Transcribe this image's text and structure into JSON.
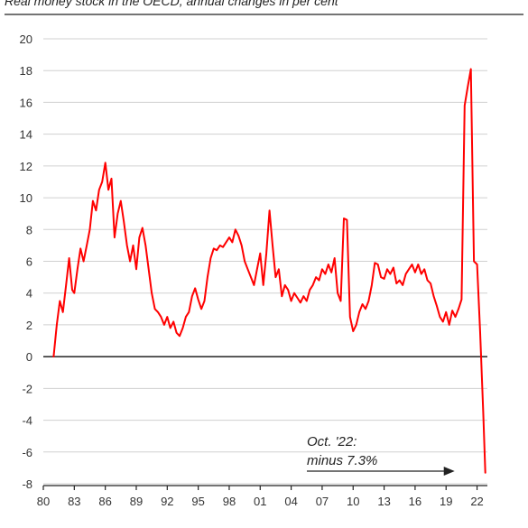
{
  "chart_data": {
    "type": "line",
    "title": "Real money stock in the OECD, annual changes in per cent",
    "xlabel": "",
    "ylabel": "",
    "xlim": [
      1980,
      2023
    ],
    "ylim": [
      -8,
      20
    ],
    "y_ticks": [
      20,
      18,
      16,
      14,
      12,
      10,
      8,
      6,
      4,
      2,
      0,
      -2,
      -4,
      -6,
      -8
    ],
    "x_ticks": [
      {
        "label": "80",
        "value": 1980
      },
      {
        "label": "83",
        "value": 1983
      },
      {
        "label": "86",
        "value": 1986
      },
      {
        "label": "89",
        "value": 1989
      },
      {
        "label": "92",
        "value": 1992
      },
      {
        "label": "95",
        "value": 1995
      },
      {
        "label": "98",
        "value": 1998
      },
      {
        "label": "01",
        "value": 2001
      },
      {
        "label": "04",
        "value": 2004
      },
      {
        "label": "07",
        "value": 2007
      },
      {
        "label": "10",
        "value": 2010
      },
      {
        "label": "13",
        "value": 2013
      },
      {
        "label": "16",
        "value": 2016
      },
      {
        "label": "19",
        "value": 2019
      },
      {
        "label": "22",
        "value": 2022
      }
    ],
    "grid": true,
    "series": [
      {
        "color": "#ff0000",
        "x": [
          1981.0,
          1981.3,
          1981.6,
          1981.9,
          1982.2,
          1982.5,
          1982.8,
          1983.0,
          1983.3,
          1983.6,
          1983.9,
          1984.2,
          1984.5,
          1984.8,
          1985.1,
          1985.4,
          1985.7,
          1986.0,
          1986.3,
          1986.6,
          1986.9,
          1987.2,
          1987.5,
          1987.8,
          1988.1,
          1988.4,
          1988.7,
          1989.0,
          1989.3,
          1989.6,
          1989.9,
          1990.2,
          1990.5,
          1990.8,
          1991.1,
          1991.4,
          1991.7,
          1992.0,
          1992.3,
          1992.6,
          1992.9,
          1993.2,
          1993.5,
          1993.8,
          1994.1,
          1994.4,
          1994.7,
          1995.0,
          1995.3,
          1995.6,
          1995.9,
          1996.2,
          1996.5,
          1996.8,
          1997.1,
          1997.4,
          1997.7,
          1998.0,
          1998.3,
          1998.6,
          1998.9,
          1999.2,
          1999.5,
          1999.8,
          2000.1,
          2000.4,
          2000.7,
          2001.0,
          2001.3,
          2001.6,
          2001.9,
          2002.2,
          2002.5,
          2002.8,
          2003.1,
          2003.4,
          2003.7,
          2004.0,
          2004.3,
          2004.6,
          2004.9,
          2005.2,
          2005.5,
          2005.8,
          2006.1,
          2006.4,
          2006.7,
          2007.0,
          2007.3,
          2007.6,
          2007.9,
          2008.2,
          2008.5,
          2008.8,
          2009.1,
          2009.4,
          2009.7,
          2010.0,
          2010.3,
          2010.6,
          2010.9,
          2011.2,
          2011.5,
          2011.8,
          2012.1,
          2012.4,
          2012.7,
          2013.0,
          2013.3,
          2013.6,
          2013.9,
          2014.2,
          2014.5,
          2014.8,
          2015.1,
          2015.4,
          2015.7,
          2016.0,
          2016.3,
          2016.6,
          2016.9,
          2017.2,
          2017.5,
          2017.8,
          2018.1,
          2018.4,
          2018.7,
          2019.0,
          2019.3,
          2019.6,
          2019.9,
          2020.2,
          2020.5,
          2020.8,
          2021.1,
          2021.4,
          2021.7,
          2022.0,
          2022.3,
          2022.6,
          2022.8
        ],
        "y": [
          0.0,
          2.0,
          3.5,
          2.8,
          4.5,
          6.2,
          4.2,
          4.0,
          5.5,
          6.8,
          6.0,
          7.0,
          8.0,
          9.8,
          9.2,
          10.5,
          11.0,
          12.2,
          10.5,
          11.2,
          7.5,
          9.0,
          9.8,
          8.5,
          7.0,
          6.0,
          7.0,
          5.5,
          7.5,
          8.1,
          7.0,
          5.5,
          4.0,
          3.0,
          2.8,
          2.5,
          2.0,
          2.5,
          1.8,
          2.2,
          1.5,
          1.3,
          1.8,
          2.5,
          2.8,
          3.8,
          4.3,
          3.6,
          3.0,
          3.5,
          5.0,
          6.2,
          6.8,
          6.7,
          7.0,
          6.9,
          7.2,
          7.5,
          7.2,
          8.0,
          7.6,
          7.0,
          6.0,
          5.5,
          5.0,
          4.5,
          5.5,
          6.5,
          4.5,
          6.5,
          9.2,
          7.0,
          5.0,
          5.5,
          3.8,
          4.5,
          4.2,
          3.5,
          4.0,
          3.7,
          3.4,
          3.8,
          3.5,
          4.2,
          4.5,
          5.0,
          4.8,
          5.5,
          5.2,
          5.8,
          5.3,
          6.2,
          4.0,
          3.5,
          8.7,
          8.6,
          2.5,
          1.6,
          2.0,
          2.8,
          3.3,
          3.0,
          3.5,
          4.5,
          5.9,
          5.8,
          5.0,
          4.9,
          5.5,
          5.2,
          5.6,
          4.6,
          4.8,
          4.5,
          5.2,
          5.5,
          5.8,
          5.3,
          5.8,
          5.2,
          5.5,
          4.8,
          4.6,
          3.8,
          3.2,
          2.5,
          2.2,
          2.8,
          2.0,
          2.9,
          2.5,
          3.0,
          3.6,
          15.8,
          17.0,
          18.1,
          6.0,
          5.8,
          1.5,
          -3.5,
          -7.3
        ]
      }
    ],
    "annotations": [
      {
        "text_lines": [
          "Oct. '22:",
          "minus 7.3%"
        ],
        "arrow_to": {
          "x": 2022.8,
          "y": -7.3
        }
      }
    ]
  }
}
